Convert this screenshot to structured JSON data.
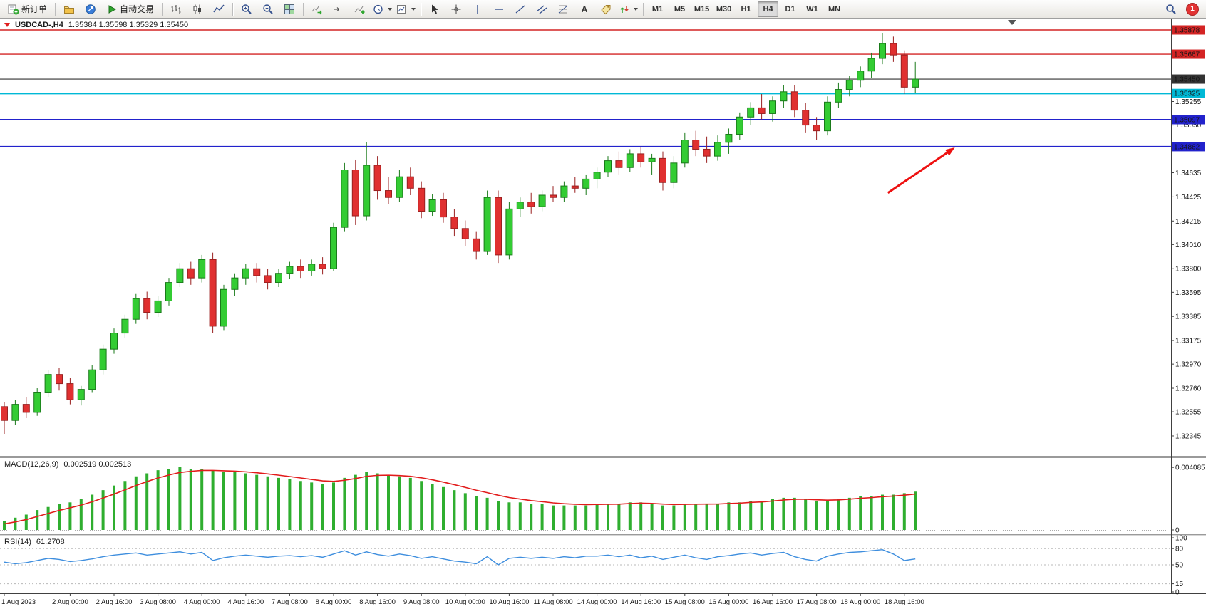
{
  "toolbar": {
    "new_order": "新订单",
    "autotrading": "自动交易",
    "timeframes": [
      "M1",
      "M5",
      "M15",
      "M30",
      "H1",
      "H4",
      "D1",
      "W1",
      "MN"
    ],
    "active_timeframe": "H4",
    "notification_count": "1",
    "icon_names": [
      "new-order-icon",
      "profiles-icon",
      "metaeditor-icon",
      "autotrading-icon",
      "bar-chart-icon",
      "candlestick-chart-icon",
      "line-chart-icon",
      "zoom-in-icon",
      "zoom-out-icon",
      "tile-windows-icon",
      "auto-scroll-icon",
      "chart-shift-icon",
      "indicators-icon",
      "periods-icon",
      "templates-icon",
      "cursor-icon",
      "crosshair-icon",
      "vertical-line-icon",
      "horizontal-line-icon",
      "trendline-icon",
      "equidistant-channel-icon",
      "fibonacci-icon",
      "text-icon",
      "text-label-icon",
      "arrows-icon",
      "search-icon",
      "notification-badge"
    ]
  },
  "chart": {
    "title": "USDCAD-,H4",
    "ohlc": "1.35384 1.35598 1.35329 1.35450"
  },
  "chart_data": {
    "type": "candlestick",
    "symbol": "USDCAD-",
    "period": "H4",
    "colors": {
      "up": "#33CC33",
      "up_border": "#1A7A1A",
      "down": "#E03030",
      "down_border": "#992020",
      "macd_bar": "#2FAE2F",
      "macd_signal": "#E21B1B",
      "rsi_line": "#3E8EDE",
      "axis_line": "#404040"
    },
    "price_axis_ticks": [
      "1.35255",
      "1.35050",
      "1.34635",
      "1.34425",
      "1.34215",
      "1.34010",
      "1.33800",
      "1.33595",
      "1.33385",
      "1.33175",
      "1.32970",
      "1.32760",
      "1.32555",
      "1.32345"
    ],
    "price_lines": [
      {
        "value": "1.35878",
        "color": "#D42424",
        "width": 1.4
      },
      {
        "value": "1.35667",
        "color": "#D42424",
        "width": 1.4
      },
      {
        "value": "1.35450",
        "color": "#333333",
        "width": 1.2
      },
      {
        "value": "1.35325",
        "color": "#00B9D6",
        "width": 2.2
      },
      {
        "value": "1.35097",
        "color": "#2222CC",
        "width": 2
      },
      {
        "value": "1.34862",
        "color": "#2222CC",
        "width": 2
      }
    ],
    "time_labels": [
      {
        "i": 0,
        "t": "1 Aug 2023"
      },
      {
        "i": 6,
        "t": "2 Aug 00:00"
      },
      {
        "i": 10,
        "t": "2 Aug 16:00"
      },
      {
        "i": 14,
        "t": "3 Aug 08:00"
      },
      {
        "i": 18,
        "t": "4 Aug 00:00"
      },
      {
        "i": 22,
        "t": "4 Aug 16:00"
      },
      {
        "i": 26,
        "t": "7 Aug 08:00"
      },
      {
        "i": 30,
        "t": "8 Aug 00:00"
      },
      {
        "i": 34,
        "t": "8 Aug 16:00"
      },
      {
        "i": 38,
        "t": "9 Aug 08:00"
      },
      {
        "i": 42,
        "t": "10 Aug 00:00"
      },
      {
        "i": 46,
        "t": "10 Aug 16:00"
      },
      {
        "i": 50,
        "t": "11 Aug 08:00"
      },
      {
        "i": 54,
        "t": "14 Aug 00:00"
      },
      {
        "i": 58,
        "t": "14 Aug 16:00"
      },
      {
        "i": 62,
        "t": "15 Aug 08:00"
      },
      {
        "i": 66,
        "t": "16 Aug 00:00"
      },
      {
        "i": 70,
        "t": "16 Aug 16:00"
      },
      {
        "i": 74,
        "t": "17 Aug 08:00"
      },
      {
        "i": 78,
        "t": "18 Aug 00:00"
      },
      {
        "i": 82,
        "t": "18 Aug 16:00"
      }
    ],
    "candles": [
      [
        1.326,
        1.3264,
        1.3236,
        1.3248
      ],
      [
        1.3248,
        1.3266,
        1.3244,
        1.3262
      ],
      [
        1.3262,
        1.3268,
        1.325,
        1.3255
      ],
      [
        1.3255,
        1.3276,
        1.3252,
        1.3272
      ],
      [
        1.3272,
        1.3292,
        1.3268,
        1.3288
      ],
      [
        1.3288,
        1.3294,
        1.3274,
        1.328
      ],
      [
        1.328,
        1.3285,
        1.3262,
        1.3266
      ],
      [
        1.3266,
        1.3278,
        1.3261,
        1.3275
      ],
      [
        1.3275,
        1.3296,
        1.3272,
        1.3292
      ],
      [
        1.3292,
        1.3314,
        1.3288,
        1.331
      ],
      [
        1.331,
        1.3328,
        1.3306,
        1.3324
      ],
      [
        1.3324,
        1.334,
        1.332,
        1.3336
      ],
      [
        1.3336,
        1.3358,
        1.3332,
        1.3354
      ],
      [
        1.3354,
        1.336,
        1.3336,
        1.3342
      ],
      [
        1.3342,
        1.3356,
        1.3338,
        1.3352
      ],
      [
        1.3352,
        1.3372,
        1.3348,
        1.3368
      ],
      [
        1.3368,
        1.3385,
        1.3364,
        1.338
      ],
      [
        1.338,
        1.3386,
        1.3366,
        1.3372
      ],
      [
        1.3372,
        1.3392,
        1.3368,
        1.3388
      ],
      [
        1.3388,
        1.3394,
        1.3324,
        1.333
      ],
      [
        1.333,
        1.3366,
        1.3326,
        1.3362
      ],
      [
        1.3362,
        1.3376,
        1.3356,
        1.3372
      ],
      [
        1.3372,
        1.3384,
        1.3366,
        1.338
      ],
      [
        1.338,
        1.3385,
        1.3368,
        1.3374
      ],
      [
        1.3374,
        1.338,
        1.3362,
        1.3368
      ],
      [
        1.3368,
        1.338,
        1.3364,
        1.3376
      ],
      [
        1.3376,
        1.3386,
        1.3371,
        1.3382
      ],
      [
        1.3382,
        1.3388,
        1.3372,
        1.3378
      ],
      [
        1.3378,
        1.3388,
        1.3374,
        1.3384
      ],
      [
        1.3384,
        1.339,
        1.3375,
        1.338
      ],
      [
        1.338,
        1.342,
        1.3378,
        1.3416
      ],
      [
        1.3416,
        1.3472,
        1.3412,
        1.3466
      ],
      [
        1.3466,
        1.3475,
        1.3418,
        1.3426
      ],
      [
        1.3426,
        1.349,
        1.3422,
        1.347
      ],
      [
        1.347,
        1.3478,
        1.344,
        1.3448
      ],
      [
        1.3448,
        1.346,
        1.3436,
        1.3442
      ],
      [
        1.3442,
        1.3466,
        1.3438,
        1.346
      ],
      [
        1.346,
        1.3468,
        1.3444,
        1.345
      ],
      [
        1.345,
        1.3456,
        1.3424,
        1.343
      ],
      [
        1.343,
        1.3445,
        1.3426,
        1.344
      ],
      [
        1.344,
        1.3446,
        1.342,
        1.3425
      ],
      [
        1.3425,
        1.3432,
        1.3408,
        1.3415
      ],
      [
        1.3415,
        1.3422,
        1.34,
        1.3406
      ],
      [
        1.3406,
        1.3412,
        1.3388,
        1.3395
      ],
      [
        1.3395,
        1.3448,
        1.3392,
        1.3442
      ],
      [
        1.3442,
        1.3448,
        1.3385,
        1.3392
      ],
      [
        1.3392,
        1.3438,
        1.3388,
        1.3432
      ],
      [
        1.3432,
        1.3442,
        1.3425,
        1.3438
      ],
      [
        1.3438,
        1.3446,
        1.3428,
        1.3434
      ],
      [
        1.3434,
        1.3448,
        1.343,
        1.3444
      ],
      [
        1.3444,
        1.3452,
        1.3438,
        1.3442
      ],
      [
        1.3442,
        1.3456,
        1.3438,
        1.3452
      ],
      [
        1.3452,
        1.346,
        1.3446,
        1.345
      ],
      [
        1.345,
        1.3462,
        1.3444,
        1.3458
      ],
      [
        1.3458,
        1.3468,
        1.345,
        1.3464
      ],
      [
        1.3464,
        1.3478,
        1.346,
        1.3474
      ],
      [
        1.3474,
        1.3482,
        1.3462,
        1.3468
      ],
      [
        1.3468,
        1.3484,
        1.3464,
        1.348
      ],
      [
        1.348,
        1.3486,
        1.3468,
        1.3473
      ],
      [
        1.3473,
        1.348,
        1.3462,
        1.3476
      ],
      [
        1.3476,
        1.3482,
        1.3448,
        1.3455
      ],
      [
        1.3455,
        1.3478,
        1.345,
        1.3472
      ],
      [
        1.3472,
        1.3498,
        1.3468,
        1.3492
      ],
      [
        1.3492,
        1.35,
        1.3478,
        1.3484
      ],
      [
        1.3484,
        1.3495,
        1.3472,
        1.3478
      ],
      [
        1.3478,
        1.3496,
        1.3474,
        1.349
      ],
      [
        1.349,
        1.3502,
        1.348,
        1.3497
      ],
      [
        1.3497,
        1.3516,
        1.3492,
        1.3512
      ],
      [
        1.3512,
        1.3525,
        1.3505,
        1.352
      ],
      [
        1.352,
        1.3532,
        1.351,
        1.3515
      ],
      [
        1.3515,
        1.353,
        1.3508,
        1.3526
      ],
      [
        1.3526,
        1.354,
        1.352,
        1.3534
      ],
      [
        1.3534,
        1.354,
        1.3512,
        1.3518
      ],
      [
        1.3518,
        1.3524,
        1.3498,
        1.3505
      ],
      [
        1.3505,
        1.3512,
        1.3492,
        1.35
      ],
      [
        1.35,
        1.353,
        1.3496,
        1.3525
      ],
      [
        1.3525,
        1.3542,
        1.352,
        1.3536
      ],
      [
        1.3536,
        1.3548,
        1.353,
        1.3544
      ],
      [
        1.3544,
        1.3556,
        1.3538,
        1.3552
      ],
      [
        1.3552,
        1.3568,
        1.3546,
        1.3563
      ],
      [
        1.3563,
        1.3585,
        1.3558,
        1.3576
      ],
      [
        1.3576,
        1.3582,
        1.356,
        1.3566
      ],
      [
        1.3566,
        1.357,
        1.3532,
        1.3538
      ],
      [
        1.3538,
        1.356,
        1.3533,
        1.3545
      ]
    ],
    "macd": {
      "label": "MACD(12,26,9)",
      "value_text": "0.002519 0.002513",
      "axis": [
        "0.004085",
        "0"
      ],
      "histogram": [
        0.0006,
        0.0008,
        0.001,
        0.0013,
        0.0015,
        0.0017,
        0.0018,
        0.002,
        0.0023,
        0.0026,
        0.0029,
        0.0032,
        0.0035,
        0.0037,
        0.0039,
        0.004,
        0.0041,
        0.004,
        0.004,
        0.0039,
        0.0038,
        0.0038,
        0.0037,
        0.0036,
        0.0035,
        0.0034,
        0.0033,
        0.0032,
        0.0031,
        0.003,
        0.0031,
        0.0034,
        0.0036,
        0.0038,
        0.0037,
        0.0036,
        0.0035,
        0.0034,
        0.0032,
        0.003,
        0.0028,
        0.0026,
        0.0024,
        0.0022,
        0.0021,
        0.0019,
        0.0018,
        0.0018,
        0.0017,
        0.0017,
        0.0016,
        0.0016,
        0.0016,
        0.0016,
        0.0017,
        0.0017,
        0.0017,
        0.0018,
        0.0018,
        0.0017,
        0.0016,
        0.0016,
        0.0017,
        0.0017,
        0.0017,
        0.0017,
        0.0018,
        0.0018,
        0.0019,
        0.0019,
        0.002,
        0.0021,
        0.0021,
        0.002,
        0.0019,
        0.0019,
        0.002,
        0.0021,
        0.0022,
        0.0022,
        0.0023,
        0.0023,
        0.0024,
        0.0025
      ]
    },
    "rsi": {
      "label": "RSI(14)",
      "value_text": "61.2708",
      "axis": [
        "100",
        "80",
        "50",
        "15",
        "0"
      ],
      "level_lines": [
        80,
        50,
        15
      ],
      "values": [
        55,
        52,
        54,
        58,
        62,
        60,
        56,
        58,
        61,
        65,
        68,
        70,
        72,
        68,
        70,
        72,
        74,
        70,
        73,
        58,
        63,
        66,
        68,
        66,
        64,
        66,
        67,
        65,
        67,
        64,
        70,
        76,
        68,
        74,
        69,
        66,
        70,
        67,
        62,
        65,
        61,
        57,
        55,
        52,
        65,
        50,
        62,
        64,
        62,
        64,
        62,
        65,
        63,
        66,
        66,
        68,
        65,
        68,
        63,
        66,
        60,
        64,
        68,
        63,
        60,
        65,
        67,
        70,
        72,
        68,
        71,
        73,
        65,
        60,
        57,
        66,
        70,
        73,
        74,
        76,
        78,
        70,
        58,
        61
      ]
    },
    "annotations": {
      "arrow": {
        "from": {
          "index": 80.5,
          "price": 1.3446
        },
        "to": {
          "index": 86.6,
          "price": 1.34855
        },
        "color": "#EE1111"
      }
    }
  }
}
